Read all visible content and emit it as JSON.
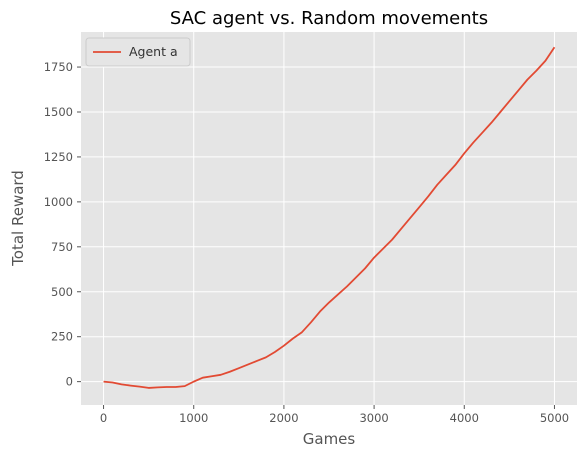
{
  "chart_data": {
    "type": "line",
    "title": "SAC agent vs. Random movements",
    "xlabel": "Games",
    "ylabel": "Total Reward",
    "xlim": [
      -250,
      5250
    ],
    "ylim": [
      -130,
      1945
    ],
    "xticks": [
      0,
      1000,
      2000,
      3000,
      4000,
      5000
    ],
    "xtick_labels": [
      "0",
      "1000",
      "2000",
      "3000",
      "4000",
      "5000"
    ],
    "yticks": [
      0,
      250,
      500,
      750,
      1000,
      1250,
      1500,
      1750
    ],
    "ytick_labels": [
      "0",
      "250",
      "500",
      "750",
      "1000",
      "1250",
      "1500",
      "1750"
    ],
    "grid": true,
    "legend_position": "top-left",
    "colors": {
      "background": "#e5e5e5",
      "grid": "#ffffff",
      "series": "#e24a33"
    },
    "series": [
      {
        "name": "Agent a",
        "x": [
          0,
          100,
          200,
          300,
          400,
          500,
          600,
          700,
          800,
          900,
          1000,
          1100,
          1200,
          1300,
          1400,
          1500,
          1600,
          1700,
          1800,
          1900,
          2000,
          2100,
          2200,
          2300,
          2400,
          2500,
          2600,
          2700,
          2800,
          2900,
          3000,
          3100,
          3200,
          3300,
          3400,
          3500,
          3600,
          3700,
          3800,
          3900,
          4000,
          4100,
          4200,
          4300,
          4400,
          4500,
          4600,
          4700,
          4800,
          4900,
          5000
        ],
        "values": [
          0,
          -5,
          -15,
          -22,
          -28,
          -35,
          -32,
          -30,
          -30,
          -25,
          0,
          22,
          30,
          38,
          55,
          75,
          95,
          115,
          135,
          165,
          200,
          240,
          275,
          330,
          390,
          440,
          485,
          530,
          580,
          630,
          690,
          740,
          790,
          850,
          910,
          970,
          1030,
          1095,
          1150,
          1205,
          1270,
          1330,
          1385,
          1440,
          1500,
          1560,
          1620,
          1680,
          1730,
          1785,
          1860
        ]
      }
    ]
  }
}
